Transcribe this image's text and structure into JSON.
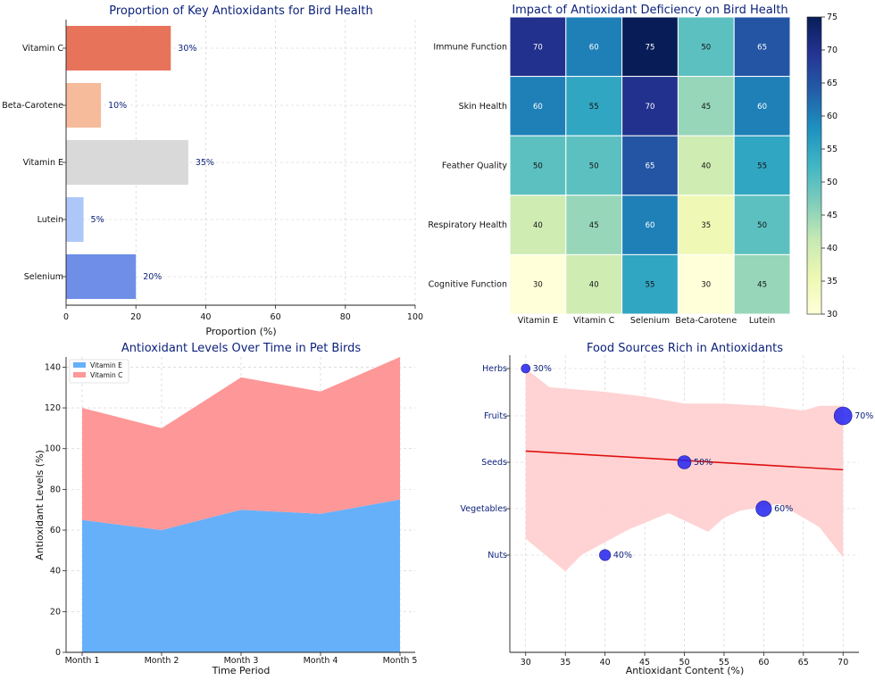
{
  "chart_data": [
    {
      "type": "bar",
      "orientation": "horizontal",
      "title": "Proportion of Key Antioxidants for Bird Health",
      "xlabel": "Proportion (%)",
      "ylabel": "",
      "xlim": [
        0,
        100
      ],
      "xticks": [
        "0",
        "20",
        "40",
        "60",
        "80",
        "100"
      ],
      "categories": [
        "Vitamin C",
        "Beta-Carotene",
        "Vitamin E",
        "Lutein",
        "Selenium"
      ],
      "values": [
        30,
        10,
        35,
        5,
        20
      ],
      "value_labels": [
        "30%",
        "10%",
        "35%",
        "5%",
        "20%"
      ],
      "colors": [
        "#e8735b",
        "#f6bb9b",
        "#d9d9d9",
        "#adc8f8",
        "#6f8ee8"
      ]
    },
    {
      "type": "heatmap",
      "title": "Impact of Antioxidant Deficiency on Bird Health",
      "rows": [
        "Immune Function",
        "Skin Health",
        "Feather Quality",
        "Respiratory Health",
        "Cognitive Function"
      ],
      "columns": [
        "Vitamin E",
        "Vitamin C",
        "Selenium",
        "Beta-Carotene",
        "Lutein"
      ],
      "values": [
        [
          70,
          60,
          75,
          50,
          65
        ],
        [
          60,
          55,
          70,
          45,
          60
        ],
        [
          50,
          50,
          65,
          40,
          55
        ],
        [
          40,
          45,
          60,
          35,
          50
        ],
        [
          30,
          40,
          55,
          30,
          45
        ]
      ],
      "colorbar": {
        "min": 30,
        "max": 75,
        "ticks": [
          "30",
          "35",
          "40",
          "45",
          "50",
          "55",
          "60",
          "65",
          "70",
          "75"
        ],
        "colormap": "YlGnBu"
      }
    },
    {
      "type": "area",
      "stacked": true,
      "title": "Antioxidant Levels Over Time in Pet Birds",
      "xlabel": "Time Period",
      "ylabel": "Antioxidant Levels (%)",
      "ylim": [
        0,
        145
      ],
      "yticks": [
        "0",
        "20",
        "40",
        "60",
        "80",
        "100",
        "120",
        "140"
      ],
      "categories": [
        "Month 1",
        "Month 2",
        "Month 3",
        "Month 4",
        "Month 5"
      ],
      "series": [
        {
          "name": "Vitamin E",
          "values": [
            65,
            60,
            70,
            68,
            75
          ],
          "color": "#66b0fa"
        },
        {
          "name": "Vitamin C",
          "values": [
            55,
            50,
            65,
            60,
            70
          ],
          "color": "#fe9797"
        }
      ],
      "legend": "top-left"
    },
    {
      "type": "scatter",
      "title": "Food Sources Rich in Antioxidants",
      "xlabel": "Antioxidant Content (%)",
      "ylabel": "",
      "xlim": [
        28,
        72
      ],
      "xticks": [
        "30",
        "35",
        "40",
        "45",
        "50",
        "55",
        "60",
        "65",
        "70"
      ],
      "categories": [
        "Herbs",
        "Fruits",
        "Seeds",
        "Vegetables",
        "Nuts"
      ],
      "points": [
        {
          "category": "Herbs",
          "x": 30,
          "label": "30%"
        },
        {
          "category": "Fruits",
          "x": 70,
          "label": "70%"
        },
        {
          "category": "Seeds",
          "x": 50,
          "label": "50%"
        },
        {
          "category": "Vegetables",
          "x": 60,
          "label": "60%"
        },
        {
          "category": "Nuts",
          "x": 40,
          "label": "40%"
        }
      ],
      "regression": {
        "start": [
          30,
          2.23
        ],
        "end": [
          70,
          1.83
        ],
        "band_color": "#ffd1d1",
        "line_color": "#e01010"
      },
      "point_color": "#2222ee"
    }
  ]
}
